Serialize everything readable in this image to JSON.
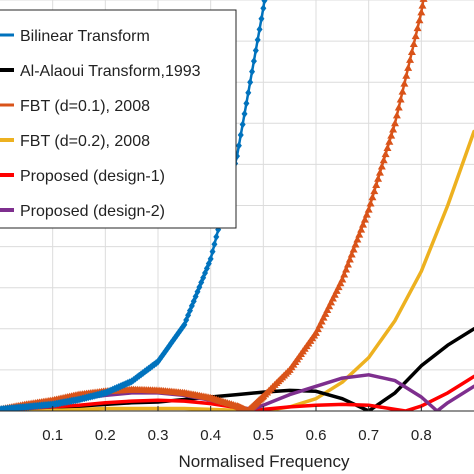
{
  "chart_data": {
    "type": "line",
    "title": "",
    "xlabel": "Normalised Frequency",
    "ylabel": "",
    "xlim": [
      0.0,
      0.9
    ],
    "ylim": [
      0,
      5
    ],
    "grid": true,
    "legend_position": "top-left",
    "x_ticks": [
      "0.1",
      "0.2",
      "0.3",
      "0.4",
      "0.5",
      "0.6",
      "0.7",
      "0.8"
    ],
    "y_ticks": [
      0,
      0.5,
      1,
      1.5,
      2,
      2.5,
      3,
      3.5,
      4,
      4.5,
      5
    ],
    "series": [
      {
        "name": "Bilinear Transform",
        "color": "#0072BD",
        "marker": "diamond",
        "points": [
          [
            0.0,
            0.02
          ],
          [
            0.05,
            0.05
          ],
          [
            0.1,
            0.08
          ],
          [
            0.15,
            0.14
          ],
          [
            0.2,
            0.22
          ],
          [
            0.25,
            0.36
          ],
          [
            0.3,
            0.6
          ],
          [
            0.35,
            1.05
          ],
          [
            0.4,
            1.85
          ],
          [
            0.45,
            3.1
          ],
          [
            0.5,
            4.9
          ],
          [
            0.53,
            6.2
          ]
        ]
      },
      {
        "name": "Al-Alaoui Transform,1993",
        "color": "#000000",
        "marker": "none",
        "points": [
          [
            0.0,
            0.02
          ],
          [
            0.05,
            0.04
          ],
          [
            0.1,
            0.05
          ],
          [
            0.15,
            0.06
          ],
          [
            0.2,
            0.08
          ],
          [
            0.25,
            0.1
          ],
          [
            0.3,
            0.11
          ],
          [
            0.35,
            0.14
          ],
          [
            0.4,
            0.17
          ],
          [
            0.45,
            0.2
          ],
          [
            0.5,
            0.23
          ],
          [
            0.55,
            0.25
          ],
          [
            0.6,
            0.24
          ],
          [
            0.65,
            0.15
          ],
          [
            0.7,
            0.0
          ],
          [
            0.75,
            0.22
          ],
          [
            0.8,
            0.55
          ],
          [
            0.85,
            0.8
          ],
          [
            0.9,
            1.0
          ]
        ]
      },
      {
        "name": "FBT (d=0.1), 2008",
        "color": "#D95319",
        "marker": "triangle",
        "points": [
          [
            0.0,
            0.02
          ],
          [
            0.05,
            0.08
          ],
          [
            0.1,
            0.13
          ],
          [
            0.15,
            0.2
          ],
          [
            0.2,
            0.24
          ],
          [
            0.25,
            0.26
          ],
          [
            0.3,
            0.25
          ],
          [
            0.35,
            0.22
          ],
          [
            0.4,
            0.16
          ],
          [
            0.45,
            0.06
          ],
          [
            0.47,
            0.0
          ],
          [
            0.5,
            0.18
          ],
          [
            0.55,
            0.5
          ],
          [
            0.6,
            0.95
          ],
          [
            0.65,
            1.6
          ],
          [
            0.7,
            2.45
          ],
          [
            0.75,
            3.5
          ],
          [
            0.8,
            4.85
          ],
          [
            0.83,
            6.0
          ]
        ]
      },
      {
        "name": "FBT (d=0.2), 2008",
        "color": "#EDB120",
        "marker": "none",
        "points": [
          [
            0.0,
            0.0
          ],
          [
            0.05,
            0.01
          ],
          [
            0.1,
            0.02
          ],
          [
            0.15,
            0.02
          ],
          [
            0.2,
            0.03
          ],
          [
            0.25,
            0.03
          ],
          [
            0.3,
            0.03
          ],
          [
            0.35,
            0.03
          ],
          [
            0.4,
            0.02
          ],
          [
            0.45,
            0.01
          ],
          [
            0.5,
            0.0
          ],
          [
            0.55,
            0.05
          ],
          [
            0.6,
            0.15
          ],
          [
            0.65,
            0.35
          ],
          [
            0.7,
            0.65
          ],
          [
            0.75,
            1.1
          ],
          [
            0.8,
            1.7
          ],
          [
            0.85,
            2.5
          ],
          [
            0.9,
            3.4
          ]
        ]
      },
      {
        "name": "Proposed (design-1)",
        "color": "#FF0000",
        "marker": "none",
        "points": [
          [
            0.0,
            0.01
          ],
          [
            0.05,
            0.03
          ],
          [
            0.1,
            0.05
          ],
          [
            0.15,
            0.07
          ],
          [
            0.2,
            0.1
          ],
          [
            0.25,
            0.12
          ],
          [
            0.3,
            0.13
          ],
          [
            0.35,
            0.12
          ],
          [
            0.4,
            0.09
          ],
          [
            0.45,
            0.04
          ],
          [
            0.48,
            0.0
          ],
          [
            0.5,
            0.02
          ],
          [
            0.55,
            0.05
          ],
          [
            0.6,
            0.07
          ],
          [
            0.65,
            0.08
          ],
          [
            0.7,
            0.07
          ],
          [
            0.75,
            0.02
          ],
          [
            0.77,
            0.0
          ],
          [
            0.8,
            0.06
          ],
          [
            0.85,
            0.22
          ],
          [
            0.9,
            0.42
          ]
        ]
      },
      {
        "name": "Proposed (design-2)",
        "color": "#7E2F8E",
        "marker": "none",
        "points": [
          [
            0.0,
            0.02
          ],
          [
            0.05,
            0.05
          ],
          [
            0.1,
            0.1
          ],
          [
            0.15,
            0.15
          ],
          [
            0.2,
            0.19
          ],
          [
            0.25,
            0.22
          ],
          [
            0.3,
            0.22
          ],
          [
            0.35,
            0.19
          ],
          [
            0.4,
            0.13
          ],
          [
            0.45,
            0.05
          ],
          [
            0.48,
            0.02
          ],
          [
            0.5,
            0.07
          ],
          [
            0.55,
            0.2
          ],
          [
            0.6,
            0.3
          ],
          [
            0.65,
            0.4
          ],
          [
            0.7,
            0.44
          ],
          [
            0.75,
            0.37
          ],
          [
            0.8,
            0.17
          ],
          [
            0.83,
            0.0
          ],
          [
            0.85,
            0.1
          ],
          [
            0.9,
            0.3
          ]
        ]
      }
    ]
  }
}
